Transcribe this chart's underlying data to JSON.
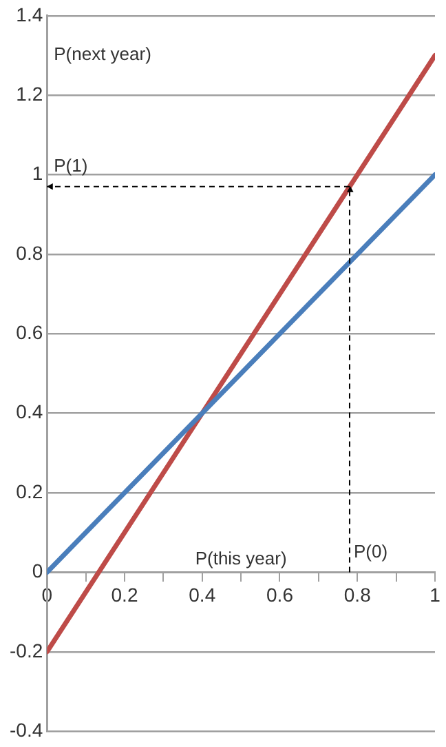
{
  "chart_data": {
    "type": "line",
    "xlabel": "P(this year)",
    "ylabel": "P(next year)",
    "x": [
      0,
      1
    ],
    "xlim": [
      0,
      1
    ],
    "xticks": [
      0,
      {
        "value": 0.1,
        "label": null
      },
      0.2,
      {
        "value": 0.3,
        "label": null
      },
      0.4,
      {
        "value": 0.5,
        "label": null
      },
      0.6,
      {
        "value": 0.7,
        "label": null
      },
      0.8,
      {
        "value": 0.9,
        "label": null
      },
      1
    ],
    "ylim": [
      -0.4,
      1.4
    ],
    "yticks": [
      -0.4,
      -0.2,
      0,
      0.2,
      0.4,
      0.6,
      0.8,
      1,
      1.2,
      1.4
    ],
    "series": [
      {
        "color": "#4a7ebb",
        "values": [
          0,
          1
        ]
      },
      {
        "color": "#be4b48",
        "values": [
          -0.2,
          1.3
        ]
      }
    ],
    "ref_lines": [
      {
        "axis": "x",
        "value": 0.78,
        "label": "P(0)",
        "color": "#000000",
        "line_style": "dashed"
      },
      {
        "axis": "y",
        "value": 0.97,
        "label": "P(1)",
        "color": "#000000",
        "line_style": "dashed"
      }
    ],
    "grid": "y",
    "legend": false,
    "marker": "none"
  }
}
